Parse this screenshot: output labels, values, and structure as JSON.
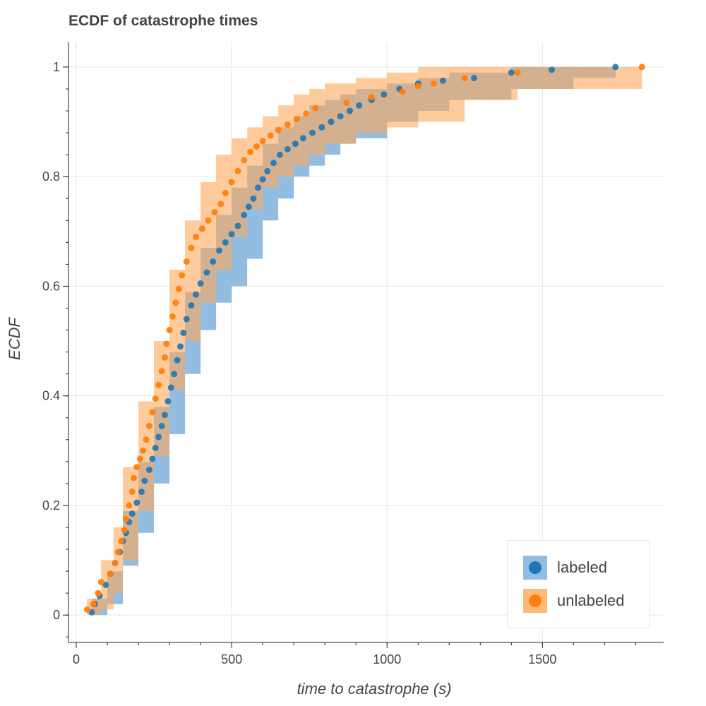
{
  "chart_data": {
    "type": "scatter",
    "title": "ECDF of catastrophe times",
    "xlabel": "time to catastrophe (s)",
    "ylabel": "ECDF",
    "xlim": [
      -25,
      1890
    ],
    "ylim": [
      -0.05,
      1.045
    ],
    "x_ticks": [
      0,
      500,
      1000,
      1500
    ],
    "y_ticks": [
      0,
      0.2,
      0.4,
      0.6,
      0.8,
      1
    ],
    "y_tick_labels": [
      "0",
      "0.2",
      "0.4",
      "0.6",
      "0.8",
      "1"
    ],
    "grid": true,
    "legend_position": "bottom-right",
    "series": [
      {
        "name": "labeled",
        "color": "#1f77b4",
        "band_color": "#7fb2da",
        "points": [
          [
            50,
            0.005
          ],
          [
            60,
            0.02
          ],
          [
            75,
            0.035
          ],
          [
            95,
            0.055
          ],
          [
            110,
            0.075
          ],
          [
            125,
            0.095
          ],
          [
            140,
            0.115
          ],
          [
            150,
            0.135
          ],
          [
            160,
            0.15
          ],
          [
            170,
            0.17
          ],
          [
            180,
            0.185
          ],
          [
            195,
            0.205
          ],
          [
            210,
            0.225
          ],
          [
            220,
            0.245
          ],
          [
            235,
            0.265
          ],
          [
            245,
            0.285
          ],
          [
            255,
            0.305
          ],
          [
            265,
            0.325
          ],
          [
            275,
            0.345
          ],
          [
            285,
            0.365
          ],
          [
            295,
            0.39
          ],
          [
            305,
            0.415
          ],
          [
            315,
            0.44
          ],
          [
            325,
            0.465
          ],
          [
            335,
            0.49
          ],
          [
            345,
            0.515
          ],
          [
            355,
            0.54
          ],
          [
            370,
            0.565
          ],
          [
            385,
            0.585
          ],
          [
            400,
            0.605
          ],
          [
            420,
            0.625
          ],
          [
            440,
            0.645
          ],
          [
            460,
            0.665
          ],
          [
            480,
            0.68
          ],
          [
            500,
            0.695
          ],
          [
            520,
            0.71
          ],
          [
            540,
            0.73
          ],
          [
            555,
            0.745
          ],
          [
            570,
            0.76
          ],
          [
            585,
            0.78
          ],
          [
            600,
            0.795
          ],
          [
            615,
            0.81
          ],
          [
            635,
            0.825
          ],
          [
            655,
            0.84
          ],
          [
            680,
            0.85
          ],
          [
            705,
            0.86
          ],
          [
            730,
            0.87
          ],
          [
            760,
            0.88
          ],
          [
            790,
            0.89
          ],
          [
            820,
            0.9
          ],
          [
            850,
            0.91
          ],
          [
            880,
            0.92
          ],
          [
            910,
            0.93
          ],
          [
            950,
            0.94
          ],
          [
            990,
            0.95
          ],
          [
            1040,
            0.96
          ],
          [
            1100,
            0.97
          ],
          [
            1180,
            0.975
          ],
          [
            1280,
            0.98
          ],
          [
            1400,
            0.99
          ],
          [
            1530,
            0.995
          ],
          [
            1735,
            1.0
          ]
        ],
        "band_lower": [
          [
            50,
            0.0
          ],
          [
            100,
            0.02
          ],
          [
            150,
            0.09
          ],
          [
            200,
            0.15
          ],
          [
            250,
            0.24
          ],
          [
            300,
            0.33
          ],
          [
            350,
            0.44
          ],
          [
            400,
            0.52
          ],
          [
            450,
            0.57
          ],
          [
            500,
            0.6
          ],
          [
            550,
            0.65
          ],
          [
            600,
            0.72
          ],
          [
            650,
            0.76
          ],
          [
            700,
            0.8
          ],
          [
            750,
            0.82
          ],
          [
            800,
            0.84
          ],
          [
            850,
            0.86
          ],
          [
            900,
            0.87
          ],
          [
            1000,
            0.9
          ],
          [
            1100,
            0.92
          ],
          [
            1200,
            0.94
          ],
          [
            1400,
            0.96
          ],
          [
            1600,
            0.98
          ],
          [
            1735,
            0.985
          ]
        ],
        "band_upper": [
          [
            50,
            0.03
          ],
          [
            100,
            0.08
          ],
          [
            150,
            0.19
          ],
          [
            200,
            0.28
          ],
          [
            250,
            0.38
          ],
          [
            300,
            0.48
          ],
          [
            350,
            0.59
          ],
          [
            400,
            0.67
          ],
          [
            450,
            0.73
          ],
          [
            500,
            0.78
          ],
          [
            550,
            0.82
          ],
          [
            600,
            0.86
          ],
          [
            650,
            0.89
          ],
          [
            700,
            0.91
          ],
          [
            750,
            0.93
          ],
          [
            800,
            0.94
          ],
          [
            850,
            0.95
          ],
          [
            900,
            0.96
          ],
          [
            1000,
            0.97
          ],
          [
            1100,
            0.98
          ],
          [
            1200,
            0.99
          ],
          [
            1400,
            1.0
          ],
          [
            1735,
            1.0
          ]
        ]
      },
      {
        "name": "unlabeled",
        "color": "#ff7f0e",
        "band_color": "#ffa85a",
        "points": [
          [
            35,
            0.01
          ],
          [
            55,
            0.02
          ],
          [
            70,
            0.04
          ],
          [
            80,
            0.06
          ],
          [
            110,
            0.075
          ],
          [
            125,
            0.095
          ],
          [
            135,
            0.115
          ],
          [
            145,
            0.135
          ],
          [
            155,
            0.155
          ],
          [
            160,
            0.175
          ],
          [
            170,
            0.2
          ],
          [
            180,
            0.225
          ],
          [
            185,
            0.25
          ],
          [
            195,
            0.27
          ],
          [
            205,
            0.285
          ],
          [
            215,
            0.3
          ],
          [
            225,
            0.32
          ],
          [
            235,
            0.345
          ],
          [
            245,
            0.37
          ],
          [
            255,
            0.395
          ],
          [
            265,
            0.42
          ],
          [
            275,
            0.445
          ],
          [
            285,
            0.47
          ],
          [
            290,
            0.495
          ],
          [
            300,
            0.52
          ],
          [
            310,
            0.545
          ],
          [
            320,
            0.57
          ],
          [
            330,
            0.595
          ],
          [
            340,
            0.62
          ],
          [
            355,
            0.645
          ],
          [
            370,
            0.67
          ],
          [
            385,
            0.69
          ],
          [
            405,
            0.705
          ],
          [
            425,
            0.72
          ],
          [
            445,
            0.735
          ],
          [
            465,
            0.75
          ],
          [
            480,
            0.77
          ],
          [
            500,
            0.79
          ],
          [
            520,
            0.81
          ],
          [
            540,
            0.83
          ],
          [
            560,
            0.845
          ],
          [
            580,
            0.855
          ],
          [
            600,
            0.865
          ],
          [
            625,
            0.875
          ],
          [
            650,
            0.885
          ],
          [
            680,
            0.895
          ],
          [
            710,
            0.905
          ],
          [
            740,
            0.915
          ],
          [
            770,
            0.925
          ],
          [
            870,
            0.935
          ],
          [
            950,
            0.945
          ],
          [
            1050,
            0.955
          ],
          [
            1100,
            0.965
          ],
          [
            1150,
            0.97
          ],
          [
            1250,
            0.98
          ],
          [
            1420,
            0.99
          ],
          [
            1820,
            1.0
          ]
        ],
        "band_lower": [
          [
            35,
            0.0
          ],
          [
            80,
            0.01
          ],
          [
            120,
            0.04
          ],
          [
            150,
            0.1
          ],
          [
            200,
            0.19
          ],
          [
            250,
            0.29
          ],
          [
            300,
            0.41
          ],
          [
            350,
            0.5
          ],
          [
            400,
            0.57
          ],
          [
            450,
            0.63
          ],
          [
            500,
            0.69
          ],
          [
            550,
            0.74
          ],
          [
            600,
            0.78
          ],
          [
            650,
            0.8
          ],
          [
            700,
            0.82
          ],
          [
            750,
            0.84
          ],
          [
            800,
            0.86
          ],
          [
            900,
            0.88
          ],
          [
            1000,
            0.89
          ],
          [
            1100,
            0.9
          ],
          [
            1250,
            0.94
          ],
          [
            1420,
            0.96
          ],
          [
            1820,
            0.97
          ]
        ],
        "band_upper": [
          [
            35,
            0.03
          ],
          [
            80,
            0.1
          ],
          [
            120,
            0.16
          ],
          [
            150,
            0.27
          ],
          [
            200,
            0.39
          ],
          [
            250,
            0.5
          ],
          [
            300,
            0.63
          ],
          [
            350,
            0.72
          ],
          [
            400,
            0.79
          ],
          [
            450,
            0.84
          ],
          [
            500,
            0.87
          ],
          [
            550,
            0.89
          ],
          [
            600,
            0.91
          ],
          [
            650,
            0.93
          ],
          [
            700,
            0.95
          ],
          [
            750,
            0.96
          ],
          [
            800,
            0.97
          ],
          [
            900,
            0.98
          ],
          [
            1000,
            0.99
          ],
          [
            1100,
            1.0
          ],
          [
            1820,
            1.0
          ]
        ]
      }
    ]
  }
}
